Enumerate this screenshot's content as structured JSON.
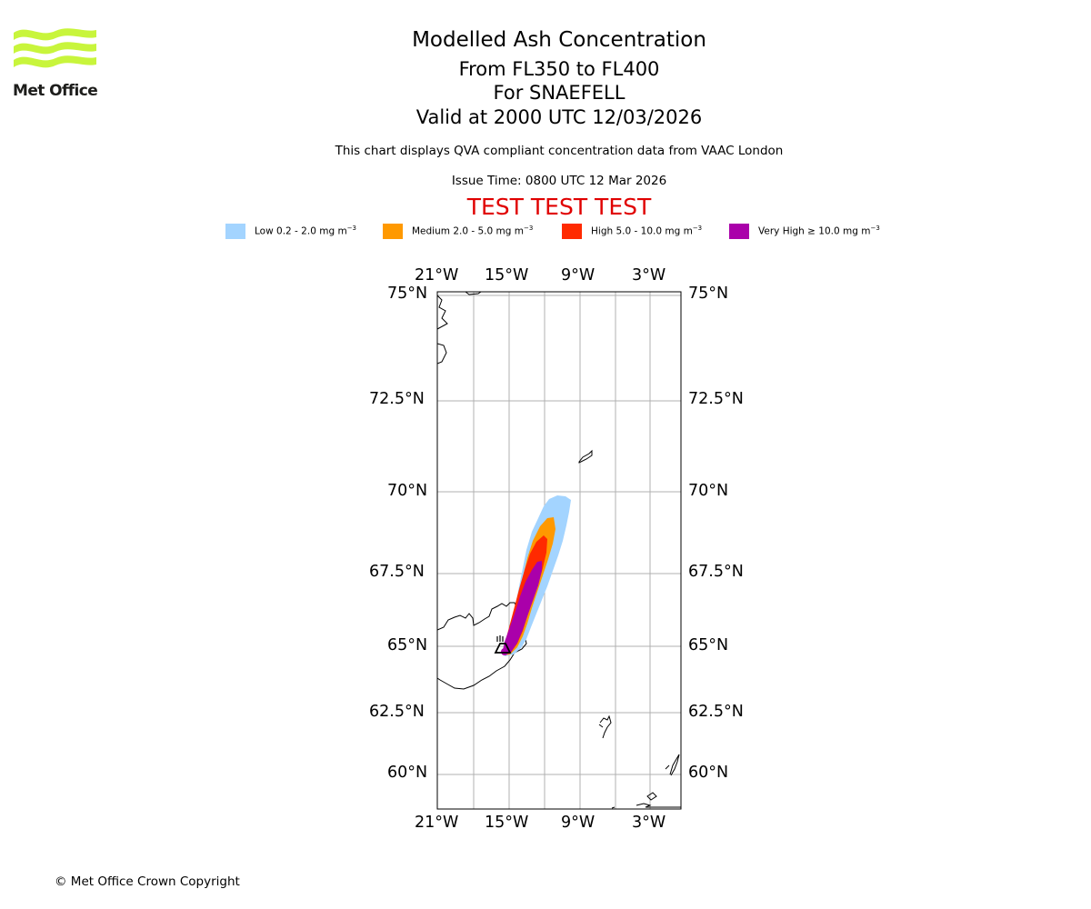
{
  "header": {
    "title": "Modelled Ash Concentration",
    "level_range": "From FL350 to FL400",
    "volcano": "For SNAEFELL",
    "valid_time": "Valid at 2000 UTC 12/03/2026",
    "description": "This chart displays QVA compliant concentration data from VAAC London",
    "issue_time": "Issue Time: 0800 UTC 12 Mar 2026",
    "test_banner": "TEST TEST TEST"
  },
  "logo": {
    "text": "Met Office",
    "color": "#c8f53c"
  },
  "legend": [
    {
      "label": "Low 0.2 - 2.0 mg m",
      "sup": "−3",
      "color": "#a3d4ff"
    },
    {
      "label": "Medium 2.0 - 5.0 mg m",
      "sup": "−3",
      "color": "#ff9900"
    },
    {
      "label": "High 5.0 - 10.0 mg m",
      "sup": "−3",
      "color": "#ff2a00"
    },
    {
      "label": "Very High ≥ 10.0 mg m",
      "sup": "−3",
      "color": "#aa00aa"
    }
  ],
  "map": {
    "lon_labels": [
      "21°W",
      "15°W",
      "9°W",
      "3°W"
    ],
    "lat_labels": [
      "75°N",
      "72.5°N",
      "70°N",
      "67.5°N",
      "65°N",
      "62.5°N",
      "60°N"
    ],
    "volcano_marker": "volcano-symbol"
  },
  "footer": {
    "copyright": "© Met Office Crown Copyright"
  }
}
